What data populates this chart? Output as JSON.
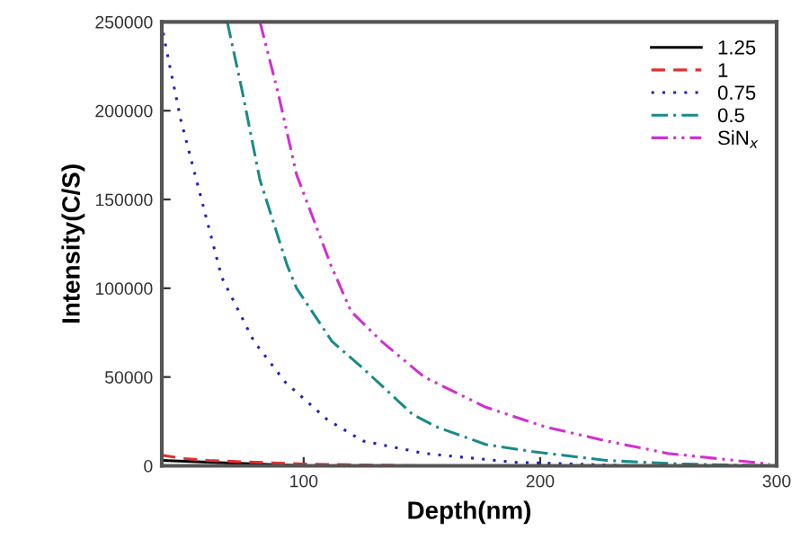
{
  "chart_data": {
    "type": "line",
    "xlabel": "Depth(nm)",
    "ylabel": "Intensity(C/S)",
    "xlim": [
      40,
      300
    ],
    "ylim": [
      0,
      250000
    ],
    "xticks": [
      100,
      200,
      300
    ],
    "yticks": [
      0,
      50000,
      100000,
      150000,
      200000,
      250000
    ],
    "grid": false,
    "legend": "top right",
    "marker": "none",
    "series": [
      {
        "name": "1.25",
        "color": "#000000",
        "line_style": "solid",
        "x": [
          40,
          60,
          80,
          100
        ],
        "values": [
          3000,
          2000,
          1000,
          0
        ]
      },
      {
        "name": "1",
        "color": "#e03030",
        "line_style": "dashed",
        "x": [
          40,
          50,
          60,
          80,
          100,
          150
        ],
        "values": [
          6000,
          4000,
          3000,
          2000,
          1000,
          0
        ]
      },
      {
        "name": "0.75",
        "color": "#2020c0",
        "line_style": "dotted",
        "x": [
          40,
          40.8,
          48,
          64,
          65.4,
          79,
          92.3,
          110,
          125,
          151,
          189,
          240,
          300
        ],
        "values": [
          250000,
          242000,
          195000,
          113000,
          106000,
          70000,
          47000,
          26000,
          14000,
          7000,
          2000,
          0,
          0
        ]
      },
      {
        "name": "0.5",
        "color": "#1a8a8a",
        "line_style": "dashdot",
        "x": [
          67.7,
          74,
          81.5,
          93,
          97,
          112,
          125,
          146,
          156,
          177,
          197,
          228,
          260,
          297
        ],
        "values": [
          250000,
          211000,
          161000,
          113000,
          100000,
          70000,
          55000,
          29000,
          22000,
          12000,
          8000,
          3000,
          1000,
          0
        ]
      },
      {
        "name": "SiN$_{x}$",
        "color": "#d030d0",
        "line_style": "dashdotdot",
        "x": [
          81.5,
          89,
          97,
          111.5,
          120,
          133,
          151,
          177,
          202,
          228,
          254,
          297
        ],
        "values": [
          250000,
          211000,
          164000,
          113000,
          87000,
          70000,
          50000,
          33000,
          22000,
          14000,
          7000,
          1000
        ]
      }
    ]
  }
}
